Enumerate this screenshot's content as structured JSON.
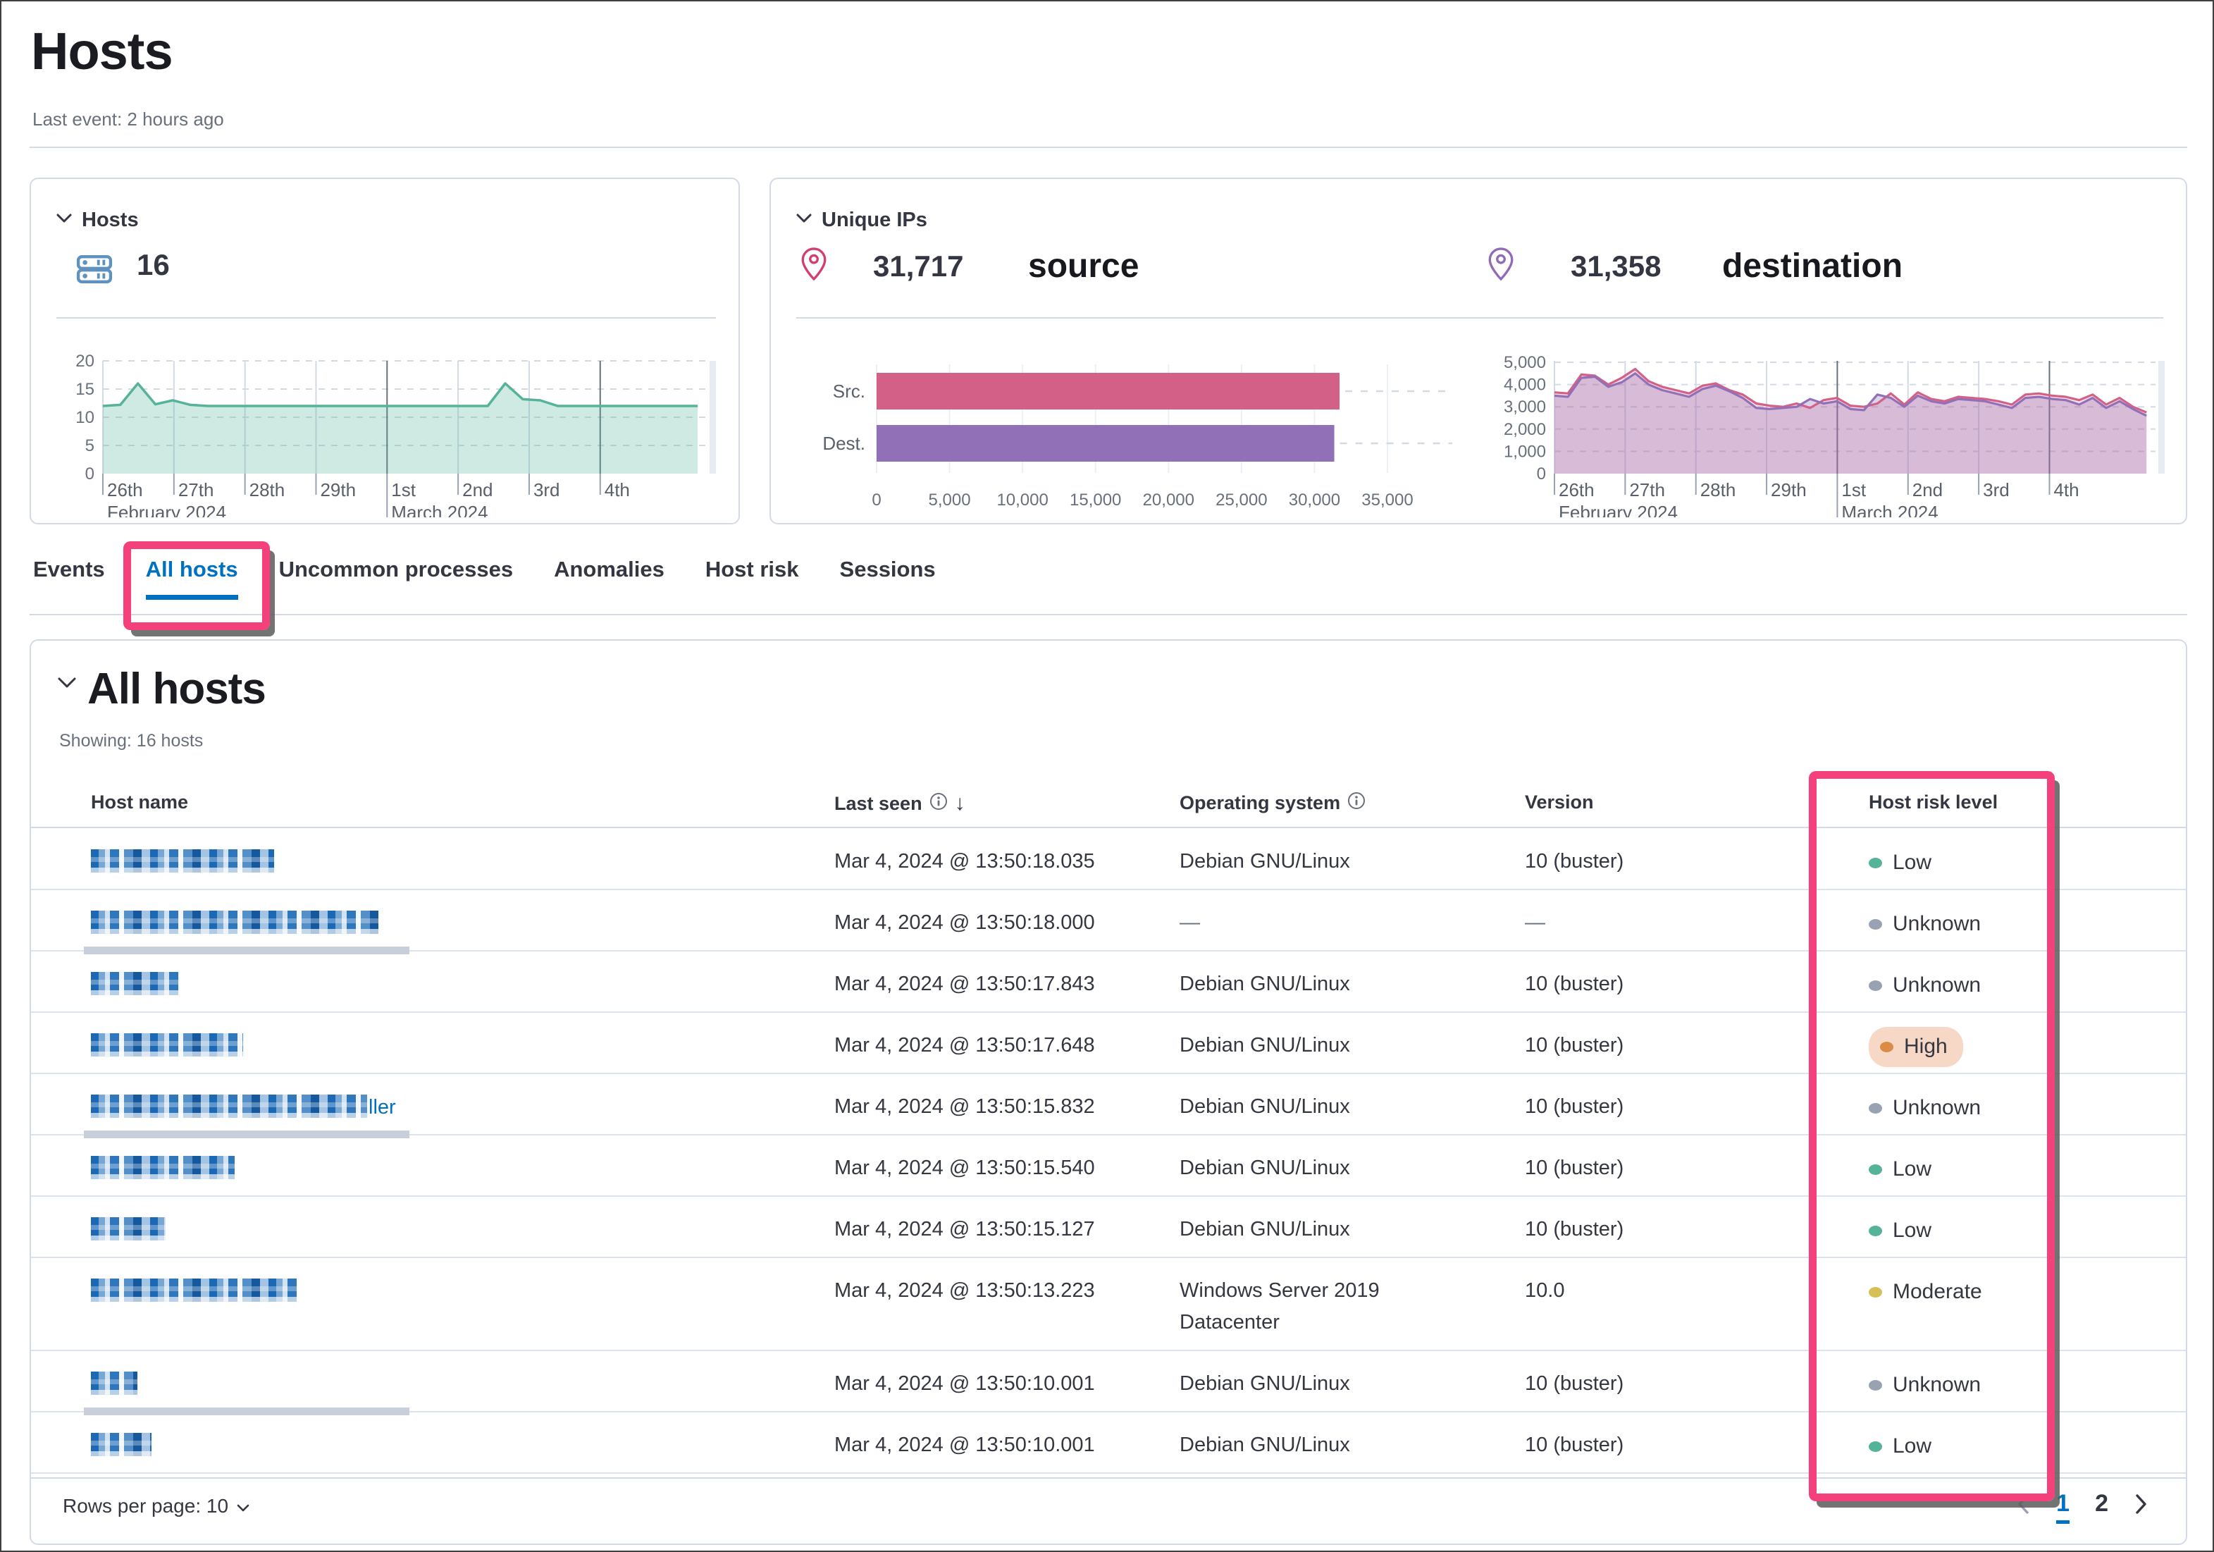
{
  "page": {
    "title": "Hosts",
    "last_event": "Last event: 2 hours ago"
  },
  "hosts_panel": {
    "title": "Hosts",
    "count": "16"
  },
  "unique_ips_panel": {
    "title": "Unique IPs",
    "source_value": "31,717",
    "source_label": "source",
    "dest_value": "31,358",
    "dest_label": "destination"
  },
  "tabs": [
    {
      "label": "Events",
      "active": false
    },
    {
      "label": "All hosts",
      "active": true
    },
    {
      "label": "Uncommon processes",
      "active": false
    },
    {
      "label": "Anomalies",
      "active": false
    },
    {
      "label": "Host risk",
      "active": false
    },
    {
      "label": "Sessions",
      "active": false
    }
  ],
  "all_hosts": {
    "heading": "All hosts",
    "showing": "Showing: 16 hosts",
    "columns": [
      "Host name",
      "Last seen",
      "Operating system",
      "Version",
      "Host risk level"
    ],
    "rows": [
      {
        "host_redacted_width": 260,
        "host_suffix": "",
        "last_seen": "Mar 4, 2024 @ 13:50:18.035",
        "os": "Debian GNU/Linux",
        "version": "10 (buster)",
        "risk": "Low",
        "highlight": false,
        "gray_bar": false,
        "h": 87
      },
      {
        "host_redacted_width": 408,
        "host_suffix": "",
        "last_seen": "Mar 4, 2024 @ 13:50:18.000",
        "os": "—",
        "version": "—",
        "risk": "Unknown",
        "highlight": false,
        "gray_bar": true,
        "h": 87
      },
      {
        "host_redacted_width": 126,
        "host_suffix": "",
        "last_seen": "Mar 4, 2024 @ 13:50:17.843",
        "os": "Debian GNU/Linux",
        "version": "10 (buster)",
        "risk": "Unknown",
        "highlight": false,
        "gray_bar": false,
        "h": 87
      },
      {
        "host_redacted_width": 216,
        "host_suffix": "",
        "last_seen": "Mar 4, 2024 @ 13:50:17.648",
        "os": "Debian GNU/Linux",
        "version": "10 (buster)",
        "risk": "High",
        "highlight": true,
        "gray_bar": false,
        "h": 87
      },
      {
        "host_redacted_width": 392,
        "host_suffix": "ller",
        "last_seen": "Mar 4, 2024 @ 13:50:15.832",
        "os": "Debian GNU/Linux",
        "version": "10 (buster)",
        "risk": "Unknown",
        "highlight": false,
        "gray_bar": true,
        "h": 87
      },
      {
        "host_redacted_width": 204,
        "host_suffix": "",
        "last_seen": "Mar 4, 2024 @ 13:50:15.540",
        "os": "Debian GNU/Linux",
        "version": "10 (buster)",
        "risk": "Low",
        "highlight": false,
        "gray_bar": false,
        "h": 87
      },
      {
        "host_redacted_width": 106,
        "host_suffix": "",
        "last_seen": "Mar 4, 2024 @ 13:50:15.127",
        "os": "Debian GNU/Linux",
        "version": "10 (buster)",
        "risk": "Low",
        "highlight": false,
        "gray_bar": false,
        "h": 87
      },
      {
        "host_redacted_width": 292,
        "host_suffix": "",
        "last_seen": "Mar 4, 2024 @ 13:50:13.223",
        "os": "Windows Server 2019 Datacenter",
        "version": "10.0",
        "risk": "Moderate",
        "highlight": false,
        "gray_bar": false,
        "h": 132
      },
      {
        "host_redacted_width": 66,
        "host_suffix": "",
        "last_seen": "Mar 4, 2024 @ 13:50:10.001",
        "os": "Debian GNU/Linux",
        "version": "10 (buster)",
        "risk": "Unknown",
        "highlight": false,
        "gray_bar": true,
        "h": 87
      },
      {
        "host_redacted_width": 86,
        "host_suffix": "",
        "last_seen": "Mar 4, 2024 @ 13:50:10.001",
        "os": "Debian GNU/Linux",
        "version": "10 (buster)",
        "risk": "Low",
        "highlight": false,
        "gray_bar": false,
        "h": 87
      }
    ],
    "rows_per_page": "Rows per page: 10",
    "pagination": {
      "pages": [
        "1",
        "2"
      ],
      "active": "1"
    }
  },
  "risk_colors": {
    "Low": "#54b399",
    "Unknown": "#98a2b3",
    "High": "#da8b45",
    "Moderate": "#d6bf57"
  },
  "colors": {
    "accent_pink_annotation": "#f4417c",
    "link_blue": "#0071c2",
    "series_green": "#54b399",
    "series_pink": "#d36086",
    "series_purple": "#9170b8",
    "grid_light": "#d3dae6",
    "grid_dark": "#69707d",
    "icon_blue": "#6092c0",
    "pin_source": "#d23f6e",
    "pin_dest": "#8f6bb8",
    "high_pill_bg": "#f7d7c6"
  },
  "chart_data": [
    {
      "name": "hosts_over_time",
      "type": "area",
      "title": "Hosts",
      "step_days": 0.25,
      "span_days": 8.5,
      "values": [
        12,
        12.2,
        16,
        12.3,
        13,
        12.2,
        12,
        12,
        12,
        12,
        12,
        12,
        12,
        12,
        12,
        12,
        12,
        12,
        12,
        12,
        12,
        12,
        12,
        16,
        13.2,
        13,
        12,
        12,
        12,
        12,
        12,
        12,
        12,
        12,
        12
      ],
      "ylim": [
        0,
        20
      ],
      "yticks": [
        0,
        5,
        10,
        15,
        20
      ],
      "day_labels": [
        "26th",
        "27th",
        "28th",
        "29th",
        "1st",
        "2nd",
        "3rd",
        "4th"
      ],
      "dark_day_indexes": [
        4,
        7
      ],
      "month_labels": [
        {
          "label": "February 2024",
          "day_index": 0
        },
        {
          "label": "March 2024",
          "day_index": 4
        }
      ],
      "color": "#54b399"
    },
    {
      "name": "unique_ips_bar",
      "type": "bar-horizontal",
      "title": "Unique IPs",
      "categories": [
        "Src.",
        "Dest."
      ],
      "values": [
        31717,
        31358
      ],
      "bar_colors": [
        "#d36086",
        "#9170b8"
      ],
      "xlim": [
        0,
        35000
      ],
      "xticks": [
        0,
        5000,
        10000,
        15000,
        20000,
        25000,
        30000,
        35000
      ]
    },
    {
      "name": "unique_ips_over_time",
      "type": "area-multi",
      "title": "Unique IPs",
      "span_days": 8.5,
      "series": [
        {
          "name": "Src.",
          "color": "#d36086",
          "values": [
            3650,
            3600,
            4450,
            4400,
            4000,
            4300,
            4700,
            4150,
            3900,
            3750,
            3600,
            3950,
            4050,
            3750,
            3550,
            3150,
            3050,
            3000,
            3150,
            2950,
            3300,
            3400,
            3050,
            3000,
            3150,
            3600,
            3100,
            3650,
            3350,
            3250,
            3450,
            3400,
            3350,
            3250,
            3100,
            3550,
            3600,
            3500,
            3450,
            3300,
            3550,
            3100,
            3400,
            3000,
            2750
          ]
        },
        {
          "name": "Dest.",
          "color": "#9170b8",
          "values": [
            3500,
            3450,
            4300,
            4350,
            3900,
            4100,
            4500,
            4000,
            3750,
            3600,
            3450,
            3800,
            3950,
            3700,
            3400,
            2950,
            2900,
            2950,
            3000,
            3350,
            3150,
            3250,
            2900,
            2850,
            3550,
            3400,
            3000,
            3500,
            3250,
            3150,
            3350,
            3300,
            3250,
            3100,
            2950,
            3400,
            3450,
            3350,
            3300,
            3100,
            3400,
            2950,
            3250,
            2900,
            2600
          ]
        }
      ],
      "ylim": [
        0,
        5000
      ],
      "yticks": [
        0,
        1000,
        2000,
        3000,
        4000,
        5000
      ],
      "day_labels": [
        "26th",
        "27th",
        "28th",
        "29th",
        "1st",
        "2nd",
        "3rd",
        "4th"
      ],
      "dark_day_indexes": [
        4,
        7
      ],
      "month_labels": [
        {
          "label": "February 2024",
          "day_index": 0
        },
        {
          "label": "March 2024",
          "day_index": 4
        }
      ]
    }
  ]
}
